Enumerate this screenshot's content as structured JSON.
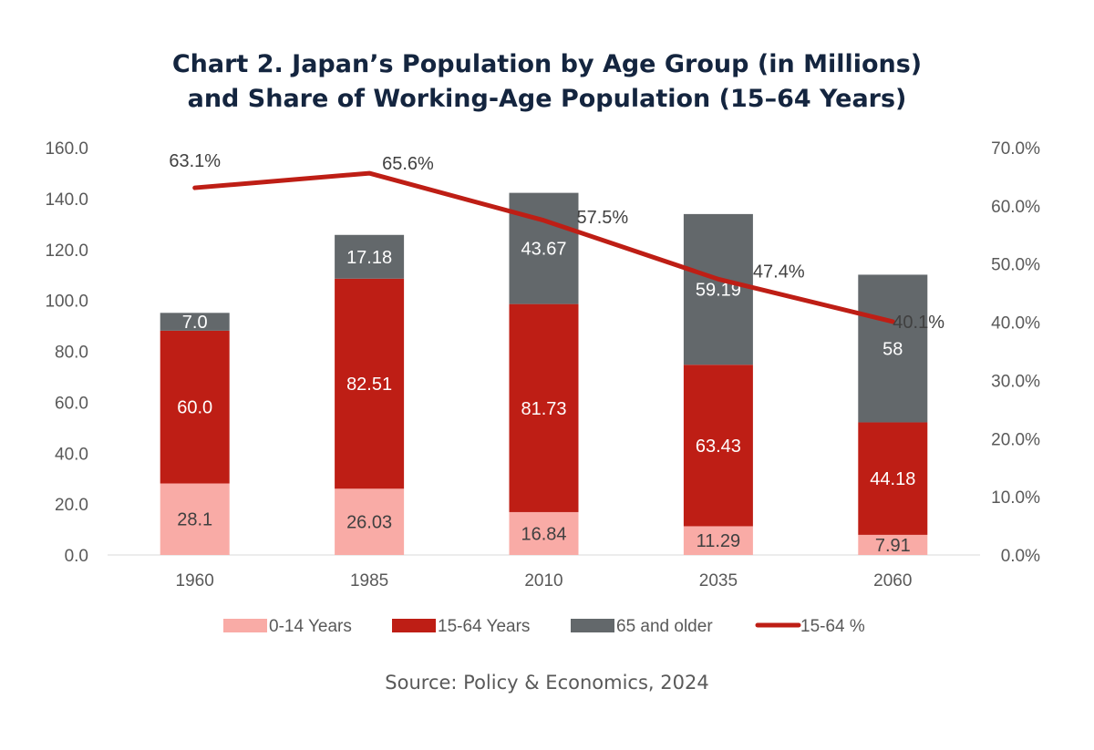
{
  "chart_data": {
    "type": "bar",
    "stacked": true,
    "title": [
      "Chart 2. Japan’s Population by Age Group (in Millions)",
      "and Share of Working-Age Population (15–64 Years)"
    ],
    "source": "Source: Policy & Economics, 2024",
    "categories": [
      "1960",
      "1985",
      "2010",
      "2035",
      "2060"
    ],
    "series": [
      {
        "name": "0-14 Years",
        "type": "bar",
        "color": "#F9ABA6",
        "values": [
          28.1,
          26.03,
          16.84,
          11.29,
          7.91
        ],
        "labels": [
          "28.1",
          "26.03",
          "16.84",
          "11.29",
          "7.91"
        ],
        "label_color": "#404040"
      },
      {
        "name": "15-64 Years",
        "type": "bar",
        "color": "#BE1E15",
        "values": [
          60.0,
          82.51,
          81.73,
          63.43,
          44.18
        ],
        "labels": [
          "60.0",
          "82.51",
          "81.73",
          "63.43",
          "44.18"
        ],
        "label_color": "#FFFFFF"
      },
      {
        "name": "65 and older",
        "type": "bar",
        "color": "#63686B",
        "values": [
          7.0,
          17.18,
          43.67,
          59.19,
          58
        ],
        "labels": [
          "7.0",
          "17.18",
          "43.67",
          "59.19",
          "58"
        ],
        "label_color": "#FFFFFF"
      },
      {
        "name": "15-64 %",
        "type": "line",
        "axis": "right",
        "color": "#BE1E15",
        "values": [
          63.1,
          65.6,
          57.5,
          47.4,
          40.1
        ],
        "labels": [
          "63.1%",
          "65.6%",
          "57.5%",
          "47.4%",
          "40.1%"
        ]
      }
    ],
    "ylim": [
      0,
      160
    ],
    "y_ticks": [
      "0.0",
      "20.0",
      "40.0",
      "60.0",
      "80.0",
      "100.0",
      "120.0",
      "140.0",
      "160.0"
    ],
    "y2lim": [
      0,
      70
    ],
    "y2_ticks": [
      "0.0%",
      "10.0%",
      "20.0%",
      "30.0%",
      "40.0%",
      "50.0%",
      "60.0%",
      "70.0%"
    ],
    "grid": false,
    "legend": "bottom"
  }
}
